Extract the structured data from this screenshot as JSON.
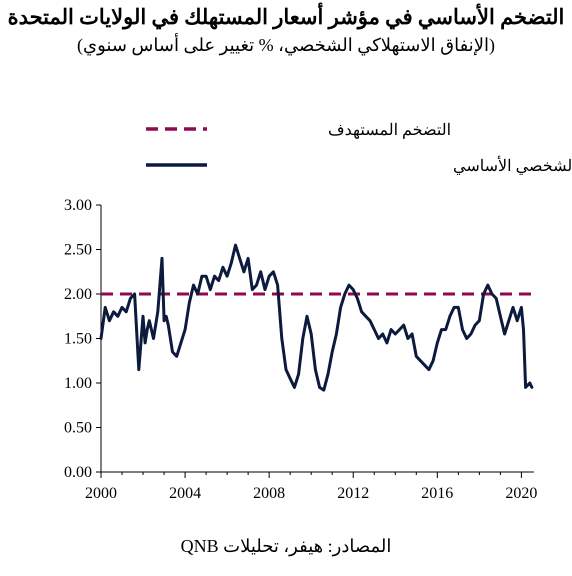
{
  "header": {
    "title": "التضخم الأساسي في مؤشر أسعار المستهلك في الولايات المتحدة",
    "subtitle": "(الإنفاق الاستهلاكي الشخصي، % تغيير على أساس سنوي)"
  },
  "footer": {
    "source": "المصادر: هيفر، تحليلات QNB"
  },
  "colors": {
    "target": "#8b0a50",
    "core": "#0b1a3d",
    "axis": "#000000"
  },
  "chart_data": {
    "type": "line",
    "title": "التضخم الأساسي في مؤشر أسعار المستهلك في الولايات المتحدة",
    "subtitle": "(الإنفاق الاستهلاكي الشخصي، % تغيير على أساس سنوي)",
    "xlim": [
      2000,
      2020.6
    ],
    "ylim": [
      0,
      3
    ],
    "x_ticks": [
      "2000",
      "2004",
      "2008",
      "2012",
      "2016",
      "2020"
    ],
    "y_ticks": [
      "0.00",
      "0.50",
      "1.00",
      "1.50",
      "2.00",
      "2.50",
      "3.00"
    ],
    "legend_position": "top",
    "series": [
      {
        "name": "التضخم المستهدف",
        "style": "dashed",
        "x": [
          2000,
          2020.6
        ],
        "y": [
          2.0,
          2.0
        ]
      },
      {
        "name": "الإنفاق الاستهلاكي الشخصي الأساسي",
        "style": "solid",
        "x": [
          2000.0,
          2000.2,
          2000.4,
          2000.6,
          2000.8,
          2001.0,
          2001.2,
          2001.4,
          2001.6,
          2001.8,
          2002.0,
          2002.1,
          2002.2,
          2002.3,
          2002.5,
          2002.7,
          2002.9,
          2003.0,
          2003.1,
          2003.2,
          2003.4,
          2003.6,
          2003.8,
          2004.0,
          2004.2,
          2004.4,
          2004.6,
          2004.8,
          2005.0,
          2005.2,
          2005.4,
          2005.6,
          2005.8,
          2006.0,
          2006.2,
          2006.4,
          2006.6,
          2006.8,
          2007.0,
          2007.2,
          2007.4,
          2007.6,
          2007.8,
          2008.0,
          2008.2,
          2008.4,
          2008.6,
          2008.8,
          2009.0,
          2009.2,
          2009.4,
          2009.6,
          2009.8,
          2010.0,
          2010.2,
          2010.4,
          2010.6,
          2010.8,
          2011.0,
          2011.2,
          2011.4,
          2011.6,
          2011.8,
          2012.0,
          2012.2,
          2012.4,
          2012.6,
          2012.8,
          2013.0,
          2013.2,
          2013.4,
          2013.6,
          2013.8,
          2014.0,
          2014.2,
          2014.4,
          2014.6,
          2014.8,
          2015.0,
          2015.2,
          2015.4,
          2015.6,
          2015.8,
          2016.0,
          2016.2,
          2016.4,
          2016.6,
          2016.8,
          2017.0,
          2017.2,
          2017.4,
          2017.6,
          2017.8,
          2018.0,
          2018.2,
          2018.4,
          2018.6,
          2018.8,
          2019.0,
          2019.2,
          2019.4,
          2019.6,
          2019.8,
          2020.0,
          2020.1,
          2020.2,
          2020.4,
          2020.5
        ],
        "y": [
          1.5,
          1.85,
          1.7,
          1.8,
          1.75,
          1.85,
          1.8,
          1.95,
          2.0,
          1.15,
          1.75,
          1.45,
          1.6,
          1.7,
          1.5,
          1.8,
          2.4,
          1.7,
          1.75,
          1.65,
          1.35,
          1.3,
          1.45,
          1.6,
          1.9,
          2.1,
          2.0,
          2.2,
          2.2,
          2.05,
          2.2,
          2.15,
          2.3,
          2.2,
          2.35,
          2.55,
          2.4,
          2.25,
          2.4,
          2.05,
          2.1,
          2.25,
          2.05,
          2.2,
          2.25,
          2.1,
          1.5,
          1.15,
          1.05,
          0.95,
          1.1,
          1.5,
          1.75,
          1.55,
          1.15,
          0.95,
          0.92,
          1.1,
          1.35,
          1.55,
          1.85,
          2.0,
          2.1,
          2.05,
          1.95,
          1.8,
          1.75,
          1.7,
          1.6,
          1.5,
          1.55,
          1.45,
          1.6,
          1.55,
          1.6,
          1.65,
          1.5,
          1.55,
          1.3,
          1.25,
          1.2,
          1.15,
          1.25,
          1.45,
          1.6,
          1.6,
          1.75,
          1.85,
          1.85,
          1.6,
          1.5,
          1.55,
          1.65,
          1.7,
          2.0,
          2.1,
          2.0,
          1.95,
          1.75,
          1.55,
          1.7,
          1.85,
          1.7,
          1.85,
          1.6,
          0.95,
          1.0,
          0.95
        ]
      }
    ]
  }
}
